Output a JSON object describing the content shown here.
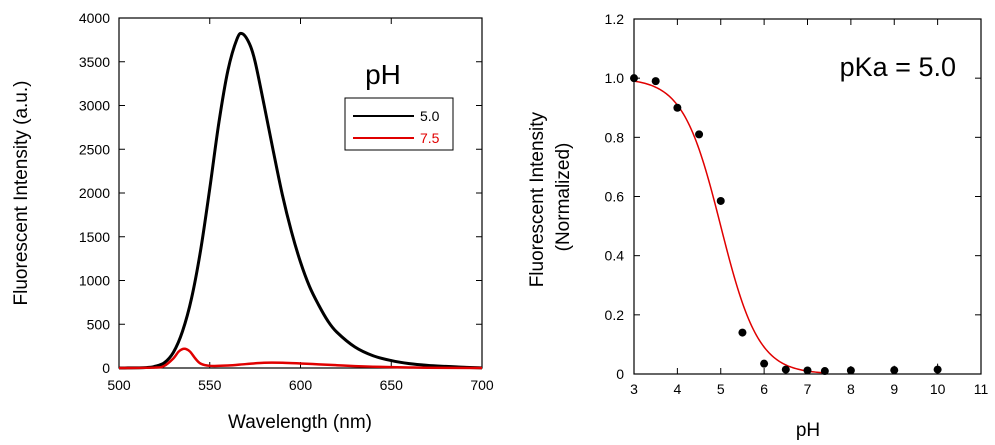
{
  "chart_data": [
    {
      "type": "line",
      "xlabel": "Wavelength (nm)",
      "ylabel": "Fluorescent Intensity (a.u.)",
      "xlim": [
        500,
        700
      ],
      "ylim": [
        0,
        4000
      ],
      "xticks": [
        "500",
        "550",
        "600",
        "650",
        "700"
      ],
      "yticks": [
        "0",
        "500",
        "1000",
        "1500",
        "2000",
        "2500",
        "3000",
        "3500",
        "4000"
      ],
      "grid": false,
      "legend": {
        "title": "pH",
        "placement": "top-right"
      },
      "series": [
        {
          "name": "5.0",
          "color": "#000000",
          "x": [
            500,
            515,
            520,
            525,
            530,
            535,
            540,
            545,
            550,
            555,
            560,
            565,
            568,
            572,
            575,
            580,
            585,
            590,
            595,
            600,
            605,
            610,
            615,
            620,
            630,
            640,
            650,
            660,
            670,
            680,
            690,
            700
          ],
          "y": [
            0,
            5,
            20,
            60,
            180,
            420,
            800,
            1350,
            2050,
            2800,
            3400,
            3760,
            3820,
            3700,
            3500,
            3000,
            2480,
            1980,
            1560,
            1210,
            930,
            720,
            540,
            410,
            240,
            140,
            85,
            50,
            30,
            18,
            8,
            2
          ]
        },
        {
          "name": "7.5",
          "color": "#e00000",
          "x": [
            500,
            520,
            525,
            530,
            533,
            536,
            539,
            542,
            545,
            550,
            560,
            570,
            580,
            590,
            600,
            610,
            620,
            630,
            640,
            650,
            660,
            670,
            700
          ],
          "y": [
            0,
            5,
            25,
            110,
            190,
            220,
            190,
            110,
            50,
            25,
            28,
            45,
            60,
            60,
            52,
            42,
            32,
            22,
            15,
            10,
            6,
            3,
            0
          ]
        }
      ]
    },
    {
      "type": "scatter",
      "xlabel": "pH",
      "ylabel": "Fluorescent Intensity (Normalized)",
      "ylabel_lines": [
        "Fluorescent Intensity",
        "(Normalized)"
      ],
      "annotation": "pKa = 5.0",
      "xlim": [
        3,
        11
      ],
      "ylim": [
        0,
        1.2
      ],
      "xticks": [
        "3",
        "4",
        "5",
        "6",
        "7",
        "8",
        "9",
        "10",
        "11"
      ],
      "yticks": [
        "0",
        "0.2",
        "0.4",
        "0.6",
        "0.8",
        "1.0",
        "1.2"
      ],
      "grid": false,
      "points": {
        "color": "#000000",
        "x": [
          3.0,
          3.5,
          4.0,
          4.5,
          5.0,
          5.5,
          6.0,
          6.5,
          7.0,
          7.4,
          8.0,
          9.0,
          10.0
        ],
        "y": [
          1.0,
          0.99,
          0.9,
          0.81,
          0.585,
          0.14,
          0.035,
          0.015,
          0.012,
          0.01,
          0.012,
          0.013,
          0.015
        ],
        "error": [
          0.0,
          0.0,
          0.0,
          0.0,
          0.0,
          0.0,
          0.01,
          0.0,
          0.01,
          0.0,
          0.015,
          0.015,
          0.02
        ]
      },
      "fit": {
        "color": "#e00000",
        "model": "sigmoid",
        "pKa": 5.0,
        "top": 1.0,
        "bottom": 0.0,
        "xrange": [
          3,
          7.4
        ]
      }
    }
  ]
}
